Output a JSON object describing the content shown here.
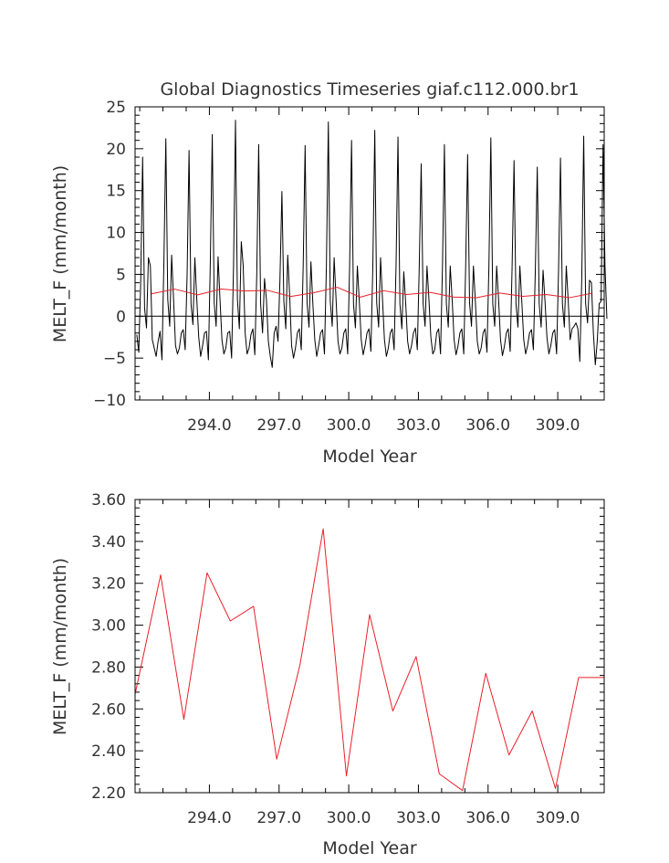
{
  "chart_data": [
    {
      "type": "line",
      "title": "Global Diagnostics Timeseries giaf.c112.000.br1",
      "xlabel": "Model Year",
      "ylabel": "MELT_F (mm/month)",
      "xlim": [
        290.8,
        311.0
      ],
      "ylim": [
        -10,
        25
      ],
      "xticks": [
        294.0,
        297.0,
        300.0,
        303.0,
        306.0,
        309.0
      ],
      "xtick_labels": [
        "294.0",
        "297.0",
        "300.0",
        "303.0",
        "306.0",
        "309.0"
      ],
      "yticks": [
        -10,
        -5,
        0,
        5,
        10,
        15,
        20,
        25
      ],
      "ytick_labels": [
        "−10",
        "−5",
        "0",
        "5",
        "10",
        "15",
        "20",
        "25"
      ],
      "zero_line": true,
      "grid": false,
      "series": [
        {
          "color": "#000000",
          "x_start": 290.875,
          "x_step": 0.0833,
          "values": [
            -2.2,
            -4.3,
            4.0,
            19.0,
            1.0,
            -1.4,
            7.0,
            6.0,
            -2.8,
            -3.8,
            -4.8,
            -3.0,
            -1.8,
            -5.2,
            6.5,
            21.2,
            2.0,
            -1.2,
            7.3,
            2.0,
            -3.5,
            -4.5,
            -3.8,
            -2.0,
            -1.6,
            -4.0,
            5.0,
            19.8,
            1.5,
            -1.0,
            7.0,
            2.0,
            -2.5,
            -4.8,
            -3.5,
            -2.0,
            -1.8,
            -5.2,
            6.5,
            21.7,
            1.6,
            -1.2,
            7.1,
            2.0,
            -2.8,
            -4.5,
            -3.8,
            -2.0,
            -1.8,
            -5.0,
            6.0,
            23.4,
            2.0,
            -1.5,
            8.9,
            6.0,
            -2.0,
            -4.5,
            -3.8,
            -2.2,
            -1.5,
            -4.6,
            5.0,
            20.5,
            1.5,
            -2.0,
            4.5,
            2.0,
            -3.0,
            -4.8,
            -6.1,
            -2.0,
            -1.2,
            -3.0,
            4.5,
            14.9,
            1.8,
            -1.5,
            7.3,
            2.5,
            -3.5,
            -5.0,
            -3.8,
            -2.0,
            -1.5,
            -4.0,
            6.0,
            20.4,
            1.6,
            -1.3,
            6.5,
            1.5,
            -2.8,
            -4.8,
            -3.5,
            -2.0,
            -1.6,
            -4.5,
            6.0,
            23.2,
            1.8,
            -1.2,
            7.0,
            2.0,
            -3.0,
            -4.5,
            -3.8,
            -2.0,
            -1.5,
            -4.5,
            6.0,
            21.0,
            1.5,
            -1.4,
            6.0,
            1.8,
            -2.8,
            -4.6,
            -3.5,
            -2.0,
            -1.5,
            -4.2,
            6.0,
            22.2,
            1.6,
            -1.3,
            7.0,
            2.0,
            -2.8,
            -4.8,
            -3.8,
            -2.0,
            -1.5,
            -4.0,
            6.0,
            21.4,
            1.5,
            -1.5,
            5.3,
            1.5,
            -3.0,
            -4.5,
            -3.5,
            -2.0,
            -1.4,
            -4.0,
            6.0,
            18.2,
            1.5,
            -1.2,
            6.0,
            2.0,
            -2.5,
            -4.5,
            -4.0,
            -2.0,
            -1.5,
            -4.5,
            6.0,
            20.5,
            1.5,
            -1.3,
            6.0,
            2.0,
            -2.8,
            -4.6,
            -3.6,
            -2.0,
            -1.5,
            -4.5,
            6.0,
            19.3,
            1.6,
            -1.2,
            6.0,
            1.8,
            -3.0,
            -4.5,
            -3.8,
            -2.0,
            -1.5,
            -4.3,
            6.0,
            21.3,
            1.5,
            -1.2,
            6.0,
            2.0,
            -2.8,
            -4.7,
            -3.6,
            -2.0,
            -1.5,
            -4.2,
            6.0,
            18.6,
            1.5,
            -1.3,
            6.0,
            1.8,
            -2.8,
            -4.5,
            -3.5,
            -2.0,
            -1.6,
            -4.0,
            5.5,
            17.8,
            1.5,
            -1.3,
            5.5,
            1.8,
            -2.5,
            -4.5,
            -3.5,
            -2.0,
            -1.6,
            -4.5,
            5.5,
            18.9,
            1.5,
            -1.3,
            6.0,
            1.8,
            -2.8,
            -1.5,
            -1.2,
            -0.8,
            -1.5,
            -5.4,
            4.5,
            21.5,
            1.5,
            -0.8,
            4.3,
            4.0,
            -2.0,
            -5.8,
            -3.0,
            1.5,
            1.8,
            20.5,
            6.0,
            -0.3
          ]
        },
        {
          "color": "#e8202a",
          "x": [
            291.5,
            292.5,
            293.5,
            294.5,
            295.5,
            296.5,
            297.5,
            298.5,
            299.5,
            300.5,
            301.5,
            302.5,
            303.5,
            304.5,
            305.5,
            306.5,
            307.5,
            308.5,
            309.5,
            310.5
          ],
          "values": [
            2.68,
            3.24,
            2.55,
            3.25,
            3.02,
            3.09,
            2.36,
            2.81,
            3.46,
            2.28,
            3.05,
            2.59,
            2.85,
            2.29,
            2.21,
            2.77,
            2.38,
            2.59,
            2.22,
            2.75
          ]
        }
      ]
    },
    {
      "type": "line",
      "title": "",
      "xlabel": "Model Year",
      "ylabel": "MELT_F (mm/month)",
      "xlim": [
        290.8,
        311.0
      ],
      "ylim": [
        2.2,
        3.6
      ],
      "xticks": [
        294.0,
        297.0,
        300.0,
        303.0,
        306.0,
        309.0
      ],
      "xtick_labels": [
        "294.0",
        "297.0",
        "300.0",
        "303.0",
        "306.0",
        "309.0"
      ],
      "yticks": [
        2.2,
        2.4,
        2.6,
        2.8,
        3.0,
        3.2,
        3.4,
        3.6
      ],
      "ytick_labels": [
        "2.20",
        "2.40",
        "2.60",
        "2.80",
        "3.00",
        "3.20",
        "3.40",
        "3.60"
      ],
      "grid": false,
      "series": [
        {
          "color": "#e8202a",
          "x": [
            290.8,
            291.9,
            292.9,
            293.9,
            294.9,
            295.9,
            296.9,
            297.9,
            298.9,
            299.9,
            300.9,
            301.9,
            302.9,
            303.9,
            304.9,
            305.9,
            306.9,
            307.9,
            308.9,
            309.9,
            311.0
          ],
          "values": [
            2.67,
            3.24,
            2.55,
            3.25,
            3.02,
            3.09,
            2.36,
            2.81,
            3.46,
            2.28,
            3.05,
            2.59,
            2.85,
            2.29,
            2.21,
            2.77,
            2.38,
            2.59,
            2.22,
            2.75,
            2.75
          ]
        }
      ]
    }
  ]
}
